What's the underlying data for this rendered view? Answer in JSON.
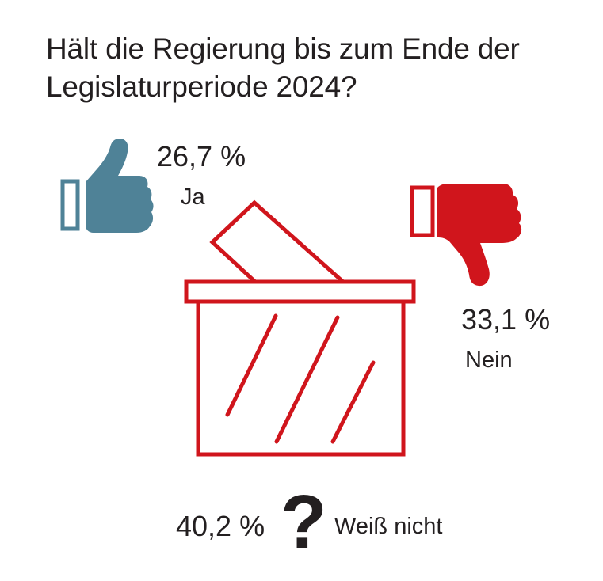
{
  "title": {
    "line1": "Hält die Regierung bis zum Ende der",
    "line2": "Legislaturperiode 2024?"
  },
  "chart_data": {
    "type": "pictogram",
    "title": "Hält die Regierung bis zum Ende der Legislaturperiode 2024?",
    "unit": "%",
    "categories": [
      "Ja",
      "Nein",
      "Weiß nicht"
    ],
    "values": [
      26.7,
      33.1,
      40.2
    ],
    "value_labels": [
      "26,7 %",
      "33,1 %",
      "40,2 %"
    ],
    "colors": {
      "Ja": "#4f8297",
      "Nein": "#d0151c",
      "Weiß nicht": "#231f20"
    }
  },
  "icons": {
    "yes": "thumbs-up-icon",
    "no": "thumbs-down-icon",
    "unknown": "question-mark-icon",
    "center": "ballot-box-icon"
  },
  "colors": {
    "blue": "#4f8297",
    "red": "#d0151c",
    "text": "#231f20"
  }
}
